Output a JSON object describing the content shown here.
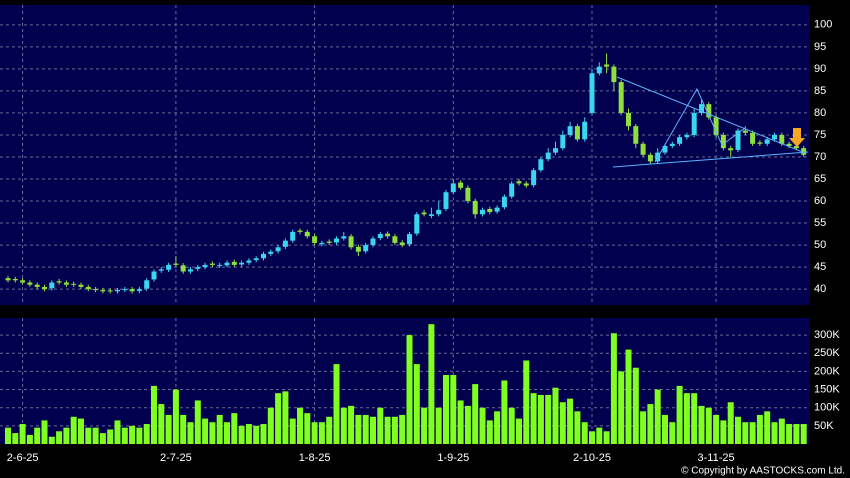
{
  "chart_data": [
    {
      "type": "candlestick",
      "up_color": "#3ad6f0",
      "down_color": "#8fe03a",
      "ylim": [
        36.4,
        104.5
      ],
      "yticks": [
        40,
        45,
        50,
        55,
        60,
        65,
        70,
        75,
        80,
        85,
        90,
        95,
        100
      ],
      "grid": true,
      "open": [
        42.5,
        42.3,
        42,
        41.5,
        41,
        40.5,
        40.2,
        41.8,
        41.5,
        41.2,
        41,
        40.5,
        40,
        39.8,
        39.7,
        39.5,
        39.8,
        40,
        39.6,
        40.1,
        42.2,
        44.2,
        44.4,
        45.8,
        45.4,
        44,
        44.6,
        45,
        45.8,
        45.3,
        45.4,
        46.2,
        45.6,
        46,
        46.6,
        47,
        48,
        48.6,
        49.6,
        51,
        53.3,
        53,
        52,
        50.2,
        50.8,
        50.6,
        51.5,
        52,
        49.6,
        48.6,
        50,
        51.6,
        52.6,
        52,
        50.6,
        50.2,
        52.6,
        57.4,
        56.6,
        57,
        58.2,
        62,
        64.2,
        63,
        60,
        57,
        58.2,
        57.6,
        58.6,
        61,
        64.5,
        64,
        63.6,
        67,
        69.5,
        71,
        72,
        75,
        77,
        74,
        80,
        89,
        91,
        90.5,
        87,
        80,
        77,
        73,
        70.5,
        69,
        71,
        72.5,
        73,
        74.5,
        75,
        80,
        82,
        79,
        75,
        72,
        71.6,
        76,
        75.5,
        73.3,
        73,
        74,
        75,
        73,
        72.5,
        72
      ],
      "high": [
        43,
        42.8,
        42.5,
        42,
        41.5,
        41,
        42,
        42.3,
        42,
        41.7,
        41.5,
        41,
        40.5,
        40.3,
        40.2,
        40.3,
        40.5,
        40.5,
        40.5,
        42.5,
        44.5,
        45,
        46,
        47.5,
        45.9,
        45,
        45.5,
        46,
        46.3,
        46,
        46.5,
        46.7,
        46.5,
        47,
        47.5,
        48.5,
        49,
        50,
        51.5,
        53.5,
        53.8,
        53.5,
        52.5,
        51,
        51.3,
        52,
        53,
        52.5,
        50.1,
        50.5,
        52,
        53,
        53.1,
        52.5,
        51.1,
        53,
        57.5,
        58,
        58.5,
        60,
        62.5,
        65,
        64.7,
        63.5,
        60.5,
        58.5,
        58.7,
        59,
        61.5,
        64.5,
        65,
        64.5,
        67.5,
        70,
        72,
        73.5,
        76,
        78,
        77.5,
        79,
        90,
        91.5,
        93.5,
        91,
        87.5,
        81,
        77.5,
        73.5,
        71,
        72,
        73,
        73.5,
        75,
        75.5,
        81,
        83,
        82.5,
        79.5,
        75.5,
        72.5,
        76.5,
        77,
        76,
        73.8,
        74.5,
        75.5,
        75.5,
        73.5,
        73,
        72.5
      ],
      "low": [
        41.5,
        41.5,
        41,
        40.5,
        40,
        39.5,
        39.7,
        41,
        40.5,
        40.5,
        40,
        39.5,
        39.3,
        39,
        39,
        39,
        39.3,
        39,
        39.1,
        39.6,
        41.7,
        43.7,
        43.9,
        45,
        43.5,
        43.5,
        44.1,
        44.5,
        45,
        44.8,
        44.9,
        45,
        45.1,
        45.5,
        46.1,
        46.5,
        47.5,
        48.1,
        49.1,
        50.5,
        52.5,
        51.5,
        50,
        49.7,
        50,
        50.1,
        51,
        49,
        47.5,
        48.1,
        49.5,
        51.1,
        51.5,
        50,
        49.5,
        49.7,
        52.1,
        56.5,
        56.1,
        56.5,
        57.7,
        61.5,
        62.5,
        59.5,
        56,
        56.5,
        57,
        57.1,
        58.1,
        60.5,
        63.5,
        63,
        63.1,
        66.5,
        69,
        70.5,
        71.5,
        74.5,
        73.5,
        73.5,
        79.5,
        88.5,
        89,
        85,
        79.5,
        76,
        72,
        70,
        68.5,
        68.5,
        70.5,
        72,
        72.5,
        74,
        74.5,
        79.5,
        78.5,
        74.5,
        71.5,
        70,
        71.1,
        75,
        72.5,
        72.5,
        72.5,
        73.5,
        72.5,
        72,
        71.5,
        70
      ],
      "close": [
        42,
        42,
        41.5,
        41,
        40.5,
        40,
        41.5,
        41.5,
        41,
        41,
        40.5,
        40,
        39.8,
        39.5,
        39.5,
        39.8,
        40,
        39.5,
        40,
        42,
        44,
        44.5,
        45.5,
        45.5,
        44,
        44.5,
        45,
        45.5,
        45.5,
        45.5,
        46,
        45.5,
        46,
        46.5,
        47,
        48,
        48.5,
        49.5,
        51,
        53,
        53,
        52,
        50.5,
        50.5,
        50.5,
        51.5,
        52,
        49.5,
        48.5,
        50,
        51.5,
        52.5,
        52,
        50.5,
        50,
        52.5,
        57,
        57,
        57,
        58,
        62,
        64,
        63,
        60,
        57,
        58,
        57.5,
        58.5,
        61,
        64,
        64,
        63.5,
        67,
        69.5,
        71,
        72,
        75,
        77,
        74,
        78,
        89,
        90.5,
        90.5,
        87,
        80,
        77,
        73,
        70.5,
        69,
        71,
        72.5,
        73,
        74.5,
        75,
        80,
        82,
        79,
        75,
        72,
        71.5,
        76,
        75.5,
        73,
        73,
        74,
        75,
        73,
        72.5,
        72,
        70.5
      ]
    },
    {
      "type": "bar",
      "color": "#80ff20",
      "categories": [
        null,
        null,
        "2-6-25",
        null,
        null,
        null,
        null,
        null,
        null,
        null,
        null,
        null,
        null,
        null,
        null,
        null,
        null,
        null,
        null,
        null,
        null,
        null,
        null,
        "2-7-25",
        null,
        null,
        null,
        null,
        null,
        null,
        null,
        null,
        null,
        null,
        null,
        null,
        null,
        null,
        null,
        null,
        null,
        null,
        "1-8-25",
        null,
        null,
        null,
        null,
        null,
        null,
        null,
        null,
        null,
        null,
        null,
        null,
        null,
        null,
        null,
        null,
        null,
        null,
        "1-9-25",
        null,
        null,
        null,
        null,
        null,
        null,
        null,
        null,
        null,
        null,
        null,
        null,
        null,
        null,
        null,
        null,
        null,
        null,
        "2-10-25",
        null,
        null,
        null,
        null,
        null,
        null,
        null,
        null,
        null,
        null,
        null,
        null,
        null,
        null,
        null,
        null,
        "3-11-25",
        null,
        null,
        null,
        null,
        null,
        null,
        null,
        null,
        null,
        null,
        null,
        null
      ],
      "values": [
        45000,
        30000,
        55000,
        25000,
        45000,
        65000,
        20000,
        35000,
        45000,
        75000,
        70000,
        45000,
        45000,
        30000,
        40000,
        65000,
        45000,
        50000,
        45000,
        55000,
        160000,
        110000,
        80000,
        150000,
        80000,
        60000,
        120000,
        70000,
        60000,
        80000,
        60000,
        85000,
        50000,
        55000,
        50000,
        55000,
        100000,
        140000,
        145000,
        70000,
        100000,
        85000,
        60000,
        60000,
        75000,
        220000,
        100000,
        105000,
        80000,
        80000,
        75000,
        100000,
        75000,
        75000,
        80000,
        300000,
        220000,
        100000,
        330000,
        100000,
        190000,
        190000,
        120000,
        105000,
        165000,
        100000,
        65000,
        90000,
        175000,
        100000,
        70000,
        230000,
        140000,
        135000,
        135000,
        155000,
        115000,
        125000,
        90000,
        60000,
        35000,
        45000,
        35000,
        305000,
        200000,
        260000,
        210000,
        90000,
        110000,
        150000,
        80000,
        60000,
        160000,
        140000,
        140000,
        105000,
        100000,
        80000,
        65000,
        115000,
        75000,
        60000,
        60000,
        80000,
        90000,
        60000,
        70000,
        55000,
        55000,
        55000
      ],
      "ylim": [
        0,
        347000
      ],
      "yticks": [
        {
          "value": 50000,
          "label": "50K"
        },
        {
          "value": 100000,
          "label": "100K"
        },
        {
          "value": 150000,
          "label": "150K"
        },
        {
          "value": 200000,
          "label": "200K"
        },
        {
          "value": 250000,
          "label": "250K"
        },
        {
          "value": 300000,
          "label": "300K"
        }
      ],
      "grid": true
    },
    {
      "copyright": "© Copyright by AASTOCKS.com Ltd."
    }
  ]
}
